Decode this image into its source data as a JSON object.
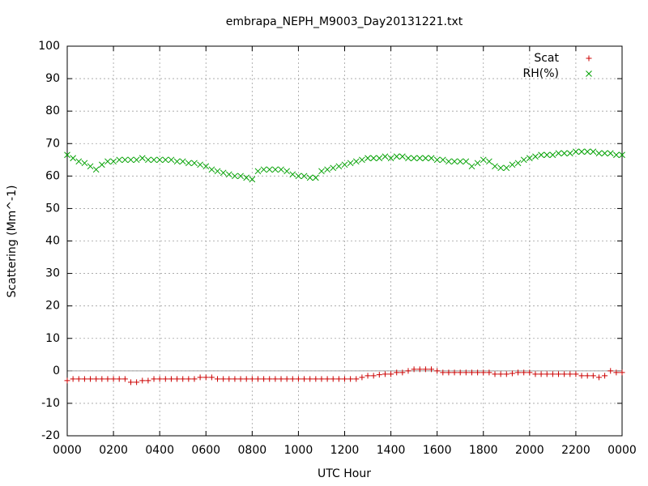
{
  "chart_data": {
    "type": "scatter",
    "title": "embrapa_NEPH_M9003_Day20131221.txt",
    "x_label": "UTC Hour",
    "y_label": "Scattering (Mm^-1)",
    "xlim": [
      0,
      24
    ],
    "ylim": [
      -20,
      100
    ],
    "xticks": [
      {
        "value": 0,
        "label": "0000"
      },
      {
        "value": 2,
        "label": "0200"
      },
      {
        "value": 4,
        "label": "0400"
      },
      {
        "value": 6,
        "label": "0600"
      },
      {
        "value": 8,
        "label": "0800"
      },
      {
        "value": 10,
        "label": "1000"
      },
      {
        "value": 12,
        "label": "1200"
      },
      {
        "value": 14,
        "label": "1400"
      },
      {
        "value": 16,
        "label": "1600"
      },
      {
        "value": 18,
        "label": "1800"
      },
      {
        "value": 20,
        "label": "2000"
      },
      {
        "value": 22,
        "label": "2200"
      },
      {
        "value": 24,
        "label": "0000"
      }
    ],
    "yticks": [
      -20,
      -10,
      0,
      10,
      20,
      30,
      40,
      50,
      60,
      70,
      80,
      90,
      100
    ],
    "grid": true,
    "legend": "top-right",
    "x": [
      0,
      0.25,
      0.5,
      0.75,
      1,
      1.25,
      1.5,
      1.75,
      2,
      2.25,
      2.5,
      2.75,
      3,
      3.25,
      3.5,
      3.75,
      4,
      4.25,
      4.5,
      4.75,
      5,
      5.25,
      5.5,
      5.75,
      6,
      6.25,
      6.5,
      6.75,
      7,
      7.25,
      7.5,
      7.75,
      8,
      8.25,
      8.5,
      8.75,
      9,
      9.25,
      9.5,
      9.75,
      10,
      10.25,
      10.5,
      10.75,
      11,
      11.25,
      11.5,
      11.75,
      12,
      12.25,
      12.5,
      12.75,
      13,
      13.25,
      13.5,
      13.75,
      14,
      14.25,
      14.5,
      14.75,
      15,
      15.25,
      15.5,
      15.75,
      16,
      16.25,
      16.5,
      16.75,
      17,
      17.25,
      17.5,
      17.75,
      18,
      18.25,
      18.5,
      18.75,
      19,
      19.25,
      19.5,
      19.75,
      20,
      20.25,
      20.5,
      20.75,
      21,
      21.25,
      21.5,
      21.75,
      22,
      22.25,
      22.5,
      22.75,
      23,
      23.25,
      23.5,
      23.75,
      24
    ],
    "series": [
      {
        "name": "Scat",
        "color": "#cc0000",
        "marker": "plus",
        "values": [
          -3,
          -2.5,
          -2.5,
          -2.5,
          -2.5,
          -2.5,
          -2.5,
          -2.5,
          -2.5,
          -2.5,
          -2.5,
          -3.5,
          -3.5,
          -3,
          -3,
          -2.5,
          -2.5,
          -2.5,
          -2.5,
          -2.5,
          -2.5,
          -2.5,
          -2.5,
          -2,
          -2,
          -2,
          -2.5,
          -2.5,
          -2.5,
          -2.5,
          -2.5,
          -2.5,
          -2.5,
          -2.5,
          -2.5,
          -2.5,
          -2.5,
          -2.5,
          -2.5,
          -2.5,
          -2.5,
          -2.5,
          -2.5,
          -2.5,
          -2.5,
          -2.5,
          -2.5,
          -2.5,
          -2.5,
          -2.5,
          -2.5,
          -2,
          -1.5,
          -1.5,
          -1.2,
          -1,
          -1,
          -0.5,
          -0.5,
          0,
          0.5,
          0.5,
          0.5,
          0.5,
          0,
          -0.5,
          -0.5,
          -0.5,
          -0.5,
          -0.5,
          -0.5,
          -0.5,
          -0.5,
          -0.5,
          -1,
          -1,
          -1,
          -0.8,
          -0.5,
          -0.5,
          -0.5,
          -1,
          -1,
          -1,
          -1,
          -1,
          -1,
          -1,
          -1,
          -1.5,
          -1.5,
          -1.5,
          -2,
          -1.5,
          0,
          -0.5,
          -0.5
        ]
      },
      {
        "name": "RH(%)",
        "color": "#00a000",
        "marker": "cross",
        "values": [
          66.5,
          65.5,
          64.5,
          64,
          63,
          62,
          63.5,
          64.5,
          64.5,
          65,
          65,
          65,
          65,
          65.5,
          65,
          65,
          65,
          65,
          65,
          64.5,
          64.5,
          64,
          64,
          63.5,
          63,
          62,
          61.5,
          61,
          60.5,
          60,
          60,
          59.5,
          59,
          61.5,
          62,
          62,
          62,
          62,
          61.5,
          60.5,
          60,
          60,
          59.5,
          59.5,
          61.5,
          62,
          62.5,
          63,
          63.5,
          64,
          64.5,
          65,
          65.5,
          65.5,
          65.5,
          66,
          65.5,
          66,
          66,
          65.5,
          65.5,
          65.5,
          65.5,
          65.5,
          65,
          65,
          64.5,
          64.5,
          64.5,
          64.5,
          63,
          64,
          65,
          64.5,
          63,
          62.5,
          62.5,
          63.5,
          64,
          65,
          65.5,
          66,
          66.5,
          66.5,
          66.5,
          67,
          67,
          67,
          67.5,
          67.5,
          67.5,
          67.5,
          67,
          67,
          67,
          66.5,
          66.5
        ]
      }
    ]
  }
}
